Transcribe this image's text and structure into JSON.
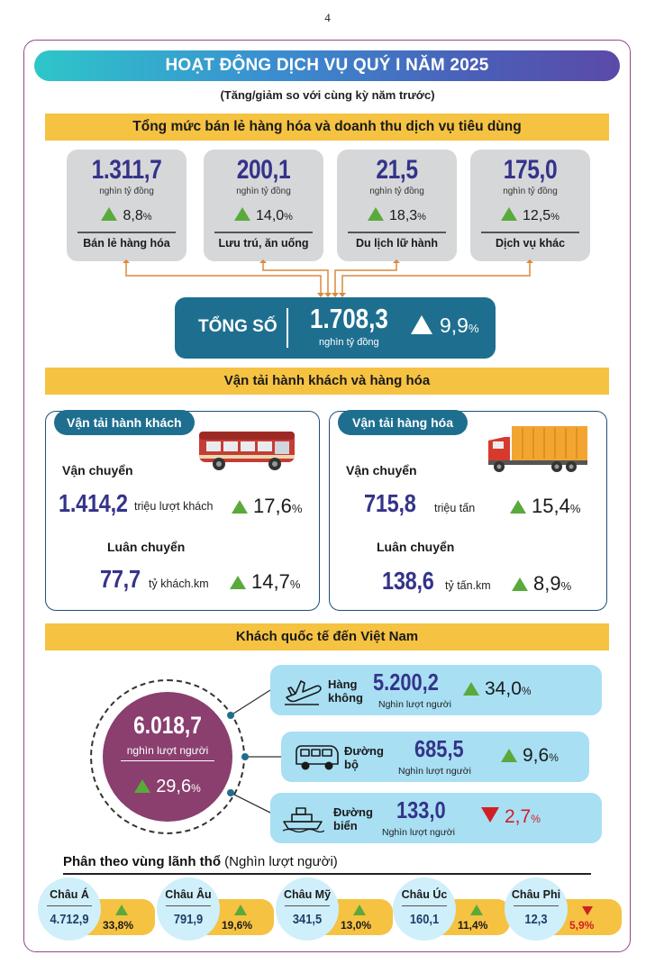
{
  "page_number": "4",
  "title": "HOẠT ĐỘNG DỊCH VỤ QUÝ I NĂM 2025",
  "subtitle": "(Tăng/giảm so với cùng kỳ năm trước)",
  "retail": {
    "heading": "Tổng mức bán lẻ hàng hóa và doanh thu dịch vụ tiêu dùng",
    "cards": [
      {
        "value": "1.311,7",
        "unit": "nghìn tỷ đồng",
        "change": "8,8",
        "pct": "%",
        "label": "Bán lẻ hàng hóa"
      },
      {
        "value": "200,1",
        "unit": "nghìn tỷ đồng",
        "change": "14,0",
        "pct": "%",
        "label": "Lưu trú, ăn uống"
      },
      {
        "value": "21,5",
        "unit": "nghìn tỷ đồng",
        "change": "18,3",
        "pct": "%",
        "label": "Du lịch lữ hành"
      },
      {
        "value": "175,0",
        "unit": "nghìn tỷ đồng",
        "change": "12,5",
        "pct": "%",
        "label": "Dịch vụ khác"
      }
    ],
    "total": {
      "label": "TỔNG SỐ",
      "value": "1.708,3",
      "unit": "nghìn tỷ đồng",
      "change": "9,9",
      "pct": "%"
    }
  },
  "transport": {
    "heading": "Vận tải hành khách và hàng hóa",
    "passenger": {
      "tab": "Vận tải hành khách",
      "carry_label": "Vận chuyển",
      "carry_value": "1.414,2",
      "carry_unit": "triệu lượt khách",
      "carry_change": "17,6",
      "rotate_label": "Luân chuyển",
      "rotate_value": "77,7",
      "rotate_unit": "tỷ khách.km",
      "rotate_change": "14,7",
      "pct": "%"
    },
    "cargo": {
      "tab": "Vận tải hàng hóa",
      "carry_label": "Vận chuyển",
      "carry_value": "715,8",
      "carry_unit": "triệu tấn",
      "carry_change": "15,4",
      "rotate_label": "Luân chuyển",
      "rotate_value": "138,6",
      "rotate_unit": "tỷ tấn.km",
      "rotate_change": "8,9",
      "pct": "%"
    }
  },
  "visitors": {
    "heading": "Khách quốc tế đến Việt Nam",
    "total_value": "6.018,7",
    "total_unit": "nghìn lượt người",
    "total_change": "29,6",
    "pct": "%",
    "modes": [
      {
        "name_1": "Hàng",
        "name_2": "không",
        "value": "5.200,2",
        "unit": "Nghìn lượt người",
        "change": "34,0",
        "direction": "up"
      },
      {
        "name_1": "Đường",
        "name_2": "bộ",
        "value": "685,5",
        "unit": "Nghìn lượt người",
        "change": "9,6",
        "direction": "up"
      },
      {
        "name_1": "Đường",
        "name_2": "biển",
        "value": "133,0",
        "unit": "Nghìn lượt người",
        "change": "2,7",
        "direction": "down"
      }
    ],
    "region_heading": "Phân theo vùng lãnh thổ",
    "region_heading_unit": "(Nghìn lượt người)",
    "regions": [
      {
        "name": "Châu Á",
        "value": "4.712,9",
        "change": "33,8%",
        "direction": "up"
      },
      {
        "name": "Châu Âu",
        "value": "791,9",
        "change": "19,6%",
        "direction": "up"
      },
      {
        "name": "Châu Mỹ",
        "value": "341,5",
        "change": "13,0%",
        "direction": "up"
      },
      {
        "name": "Châu Úc",
        "value": "160,1",
        "change": "11,4%",
        "direction": "up"
      },
      {
        "name": "Châu Phi",
        "value": "12,3",
        "change": "5,9%",
        "direction": "down"
      }
    ]
  },
  "colors": {
    "accent_navy": "#34338a",
    "band_yellow": "#f5c242",
    "teal_box": "#1e6f8f",
    "up_green": "#5aaa3b",
    "down_red": "#d11f26",
    "visitor_purple": "#8a3f6e",
    "mode_light_blue": "#a8dff3"
  }
}
